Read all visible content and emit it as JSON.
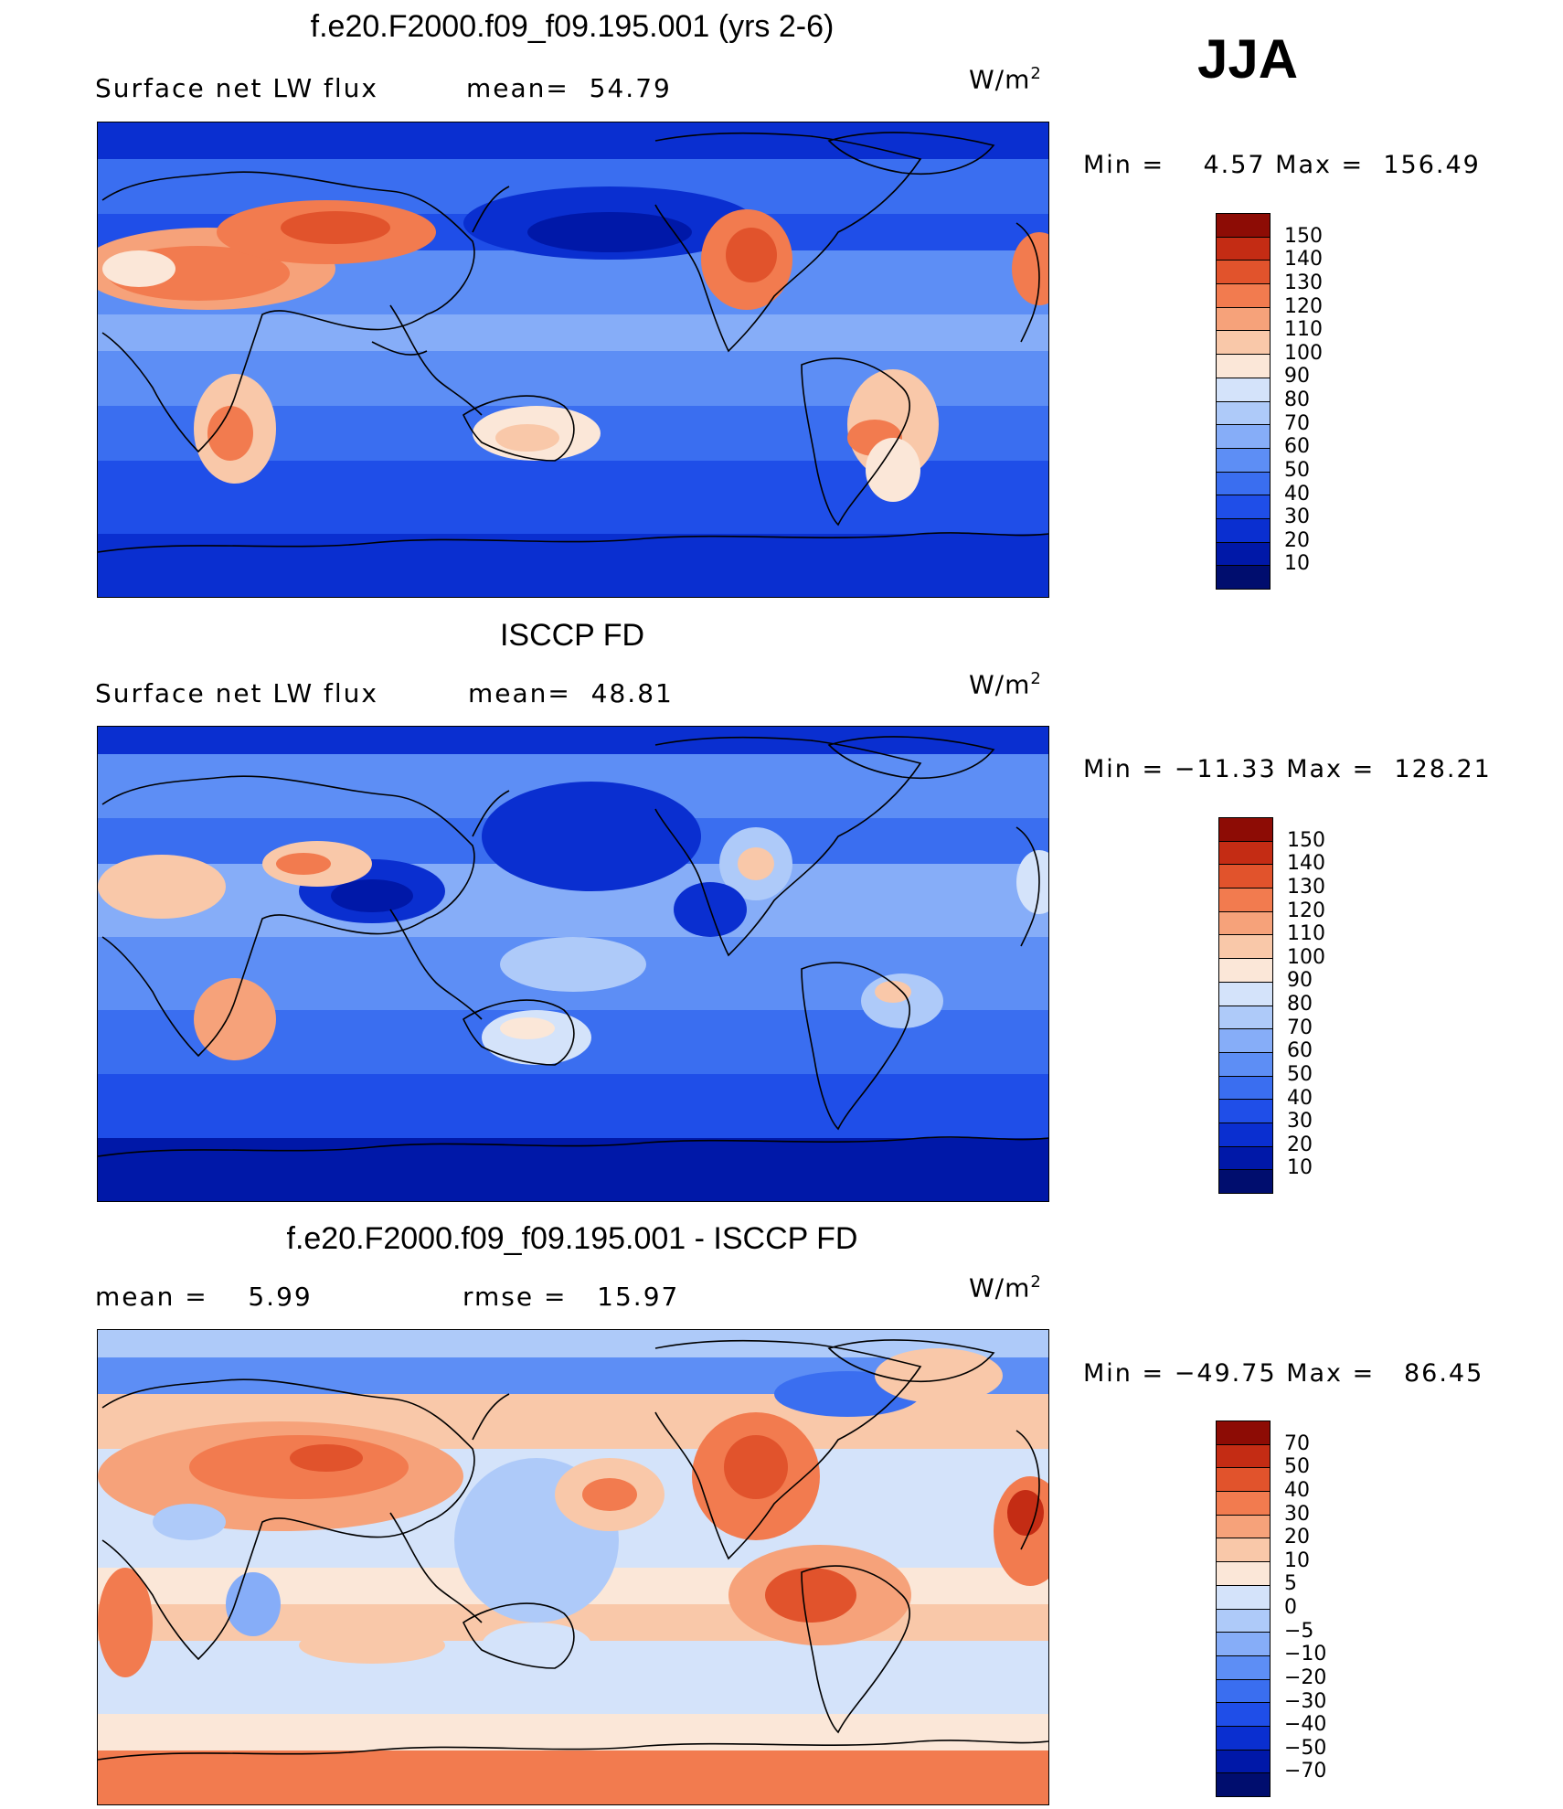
{
  "season": "JJA",
  "units_base": "W/m",
  "units_exp": "2",
  "colors": {
    "coast": "#000000",
    "abs_palette": [
      "#000d6e",
      "#0018a8",
      "#0a2fd0",
      "#1f4ee8",
      "#3a6ef0",
      "#5d8ef5",
      "#86adf8",
      "#aecaf9",
      "#d4e3fa",
      "#fbe7d8",
      "#f9c8a9",
      "#f6a27a",
      "#f27b4f",
      "#e1532c",
      "#c42c14",
      "#8d0c05"
    ],
    "diff_palette": [
      "#000d6e",
      "#0018a8",
      "#0a2fd0",
      "#1f4ee8",
      "#3a6ef0",
      "#5d8ef5",
      "#86adf8",
      "#aecaf9",
      "#d4e3fa",
      "#fbe7d8",
      "#f9c8a9",
      "#f6a27a",
      "#f27b4f",
      "#e1532c",
      "#c42c14",
      "#8d0c05"
    ]
  },
  "panels": [
    {
      "title": "f.e20.F2000.f09_f09.195.001 (yrs 2-6)",
      "left_text": "Surface net LW flux",
      "mean_text": "mean=  54.79",
      "minmax": "Min =    4.57 Max =  156.49",
      "colorbar_labels": [
        "150",
        "140",
        "130",
        "120",
        "110",
        "100",
        "90",
        "80",
        "70",
        "60",
        "50",
        "40",
        "30",
        "20",
        "10"
      ]
    },
    {
      "title": "ISCCP FD",
      "left_text": "Surface net LW flux",
      "mean_text": "mean=  48.81",
      "minmax": "Min = −11.33 Max =  128.21",
      "colorbar_labels": [
        "150",
        "140",
        "130",
        "120",
        "110",
        "100",
        "90",
        "80",
        "70",
        "60",
        "50",
        "40",
        "30",
        "20",
        "10"
      ]
    },
    {
      "title": "f.e20.F2000.f09_f09.195.001 - ISCCP FD",
      "left_text": "mean =    5.99",
      "mean_text": "rmse =   15.97",
      "minmax": "Min = −49.75 Max =   86.45",
      "colorbar_labels": [
        "70",
        "50",
        "40",
        "30",
        "20",
        "10",
        "5",
        "0",
        "−5",
        "−10",
        "−20",
        "−30",
        "−40",
        "−50",
        "−70"
      ]
    }
  ]
}
